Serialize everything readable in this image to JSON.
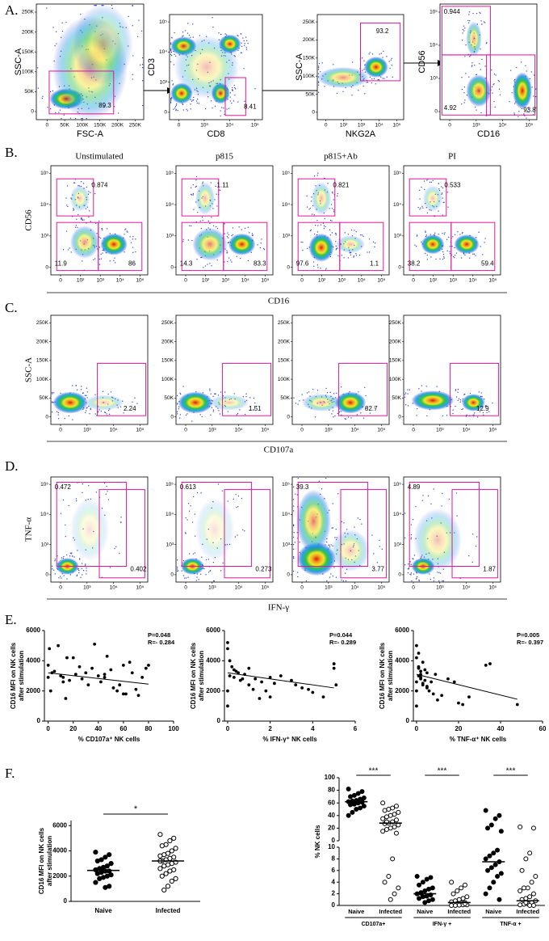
{
  "figure": {
    "panel_a": {
      "label": "A.",
      "plots": [
        {
          "y_label": "SSC-A",
          "x_label": "FSC-A",
          "yticks": [
            "0",
            "50K",
            "100K",
            "150K",
            "200K",
            "250K"
          ],
          "xticks": [
            "0",
            "50K",
            "100K",
            "150K",
            "200K",
            "250K"
          ],
          "gates": [
            "89.3"
          ]
        },
        {
          "y_label": "CD3",
          "x_label": "CD8",
          "yticks": [
            "0",
            "10³",
            "10⁴",
            "10⁵"
          ],
          "xticks": [
            "0",
            "10³",
            "10⁴",
            "10⁵"
          ],
          "gates": [
            "8.41"
          ]
        },
        {
          "y_label": "SSC-A",
          "x_label": "NKG2A",
          "yticks": [
            "0",
            "50K",
            "100K",
            "150K",
            "200K",
            "250K"
          ],
          "xticks": [
            "0",
            "10²",
            "10³",
            "10⁴",
            "10⁵"
          ],
          "gates": [
            "93.2"
          ]
        },
        {
          "y_label": "CD56",
          "x_label": "CD16",
          "yticks": [
            "0",
            "10³",
            "10⁴",
            "10⁵"
          ],
          "xticks": [
            "0",
            "10³",
            "10⁴",
            "10⁵"
          ],
          "gates": [
            "0.944",
            "4.92",
            "93.8"
          ]
        }
      ]
    },
    "panel_b": {
      "label": "B.",
      "column_titles": [
        "Unstimulated",
        "p815",
        "p815+Ab",
        "PI"
      ],
      "y_label": "CD56",
      "x_label": "CD16",
      "yticks": [
        "0",
        "10³",
        "10⁴",
        "10⁵"
      ],
      "xticks": [
        "0",
        "10²",
        "10³",
        "10⁴",
        "10⁵"
      ],
      "gates": [
        [
          "0.874",
          "11.9",
          "86"
        ],
        [
          "1.11",
          "14.3",
          "83.3"
        ],
        [
          "0.821",
          "97.6",
          "1.1"
        ],
        [
          "0.533",
          "38.2",
          "59.4"
        ]
      ]
    },
    "panel_c": {
      "label": "C.",
      "y_label": "SSC-A",
      "x_label": "CD107a",
      "yticks": [
        "0",
        "50K",
        "100K",
        "150K",
        "200K",
        "250K"
      ],
      "xticks": [
        "0",
        "10³",
        "10⁴",
        "10⁵"
      ],
      "gates": [
        [
          "2.24"
        ],
        [
          "1.51"
        ],
        [
          "82.7"
        ],
        [
          "12.9"
        ]
      ]
    },
    "panel_d": {
      "label": "D.",
      "y_label": "TNF-α",
      "x_label": "IFN-γ",
      "yticks": [
        "0",
        "10³",
        "10⁴",
        "10⁵"
      ],
      "xticks": [
        "0",
        "10³",
        "10⁴",
        "10⁵"
      ],
      "gates": [
        [
          "0.472",
          "0.402"
        ],
        [
          "0.613",
          "0.273"
        ],
        [
          "39.3",
          "3.77"
        ],
        [
          "4.89",
          "1.87"
        ]
      ]
    },
    "panel_e_label": "E.",
    "panel_f_label": "F."
  },
  "chart_data": [
    {
      "type": "scatter",
      "x_label": "% CD107a⁺ NK cells",
      "y_label": [
        "CD16 MFI on NK cells",
        "after stimulation"
      ],
      "annotations": [
        "P=0.048",
        "R=- 0.284"
      ],
      "x": [
        0,
        0,
        1,
        2,
        3,
        5,
        8,
        10,
        12,
        14,
        15,
        17,
        20,
        22,
        25,
        27,
        30,
        32,
        35,
        37,
        40,
        42,
        45,
        47,
        50,
        52,
        55,
        57,
        60,
        62,
        65,
        67,
        70,
        72,
        75,
        78,
        80,
        12,
        45,
        60
      ],
      "y": [
        2900,
        3700,
        4800,
        2000,
        3200,
        3300,
        5000,
        3000,
        2900,
        1500,
        4200,
        2700,
        4200,
        3100,
        3600,
        2800,
        3200,
        2400,
        3500,
        5100,
        3000,
        2600,
        3100,
        4300,
        3400,
        2200,
        2000,
        2400,
        3700,
        1800,
        3900,
        3200,
        2100,
        1700,
        2900,
        3500,
        3700,
        2600,
        2900,
        1800
      ],
      "trendline": {
        "x": [
          0,
          80
        ],
        "y": [
          3200,
          2450
        ]
      },
      "xlim": [
        -3,
        100
      ],
      "ylim": [
        0,
        6000
      ],
      "xticks": [
        0,
        20,
        40,
        60,
        80,
        100
      ],
      "yticks": [
        0,
        2000,
        4000,
        6000
      ],
      "color": "#000000"
    },
    {
      "type": "scatter",
      "x_label": "% IFN-γ⁺ NK cells",
      "y_label": [
        "CD16 MFI on NK cells",
        "after stimulation"
      ],
      "annotations": [
        "P=0.044",
        "R=- 0.289"
      ],
      "x": [
        0,
        0,
        0,
        0,
        0.1,
        0.1,
        0.2,
        0.3,
        0.3,
        0.5,
        0.6,
        0.8,
        1,
        1,
        1.2,
        1.3,
        1.5,
        1.6,
        1.8,
        2,
        2,
        2.2,
        2.5,
        3,
        3.2,
        3.5,
        3.8,
        4,
        4.5,
        5,
        5,
        5.1,
        0.4,
        0.7
      ],
      "y": [
        5200,
        4800,
        1000,
        2000,
        3000,
        4000,
        3600,
        3400,
        2900,
        3200,
        2700,
        3100,
        2400,
        3500,
        2100,
        2800,
        1500,
        2600,
        2000,
        1600,
        2900,
        2500,
        3000,
        2700,
        2400,
        2200,
        2100,
        1900,
        1600,
        3800,
        3500,
        2400,
        3300,
        2800
      ],
      "trendline": {
        "x": [
          0,
          5
        ],
        "y": [
          3200,
          2200
        ]
      },
      "xlim": [
        -0.15,
        6
      ],
      "ylim": [
        0,
        6000
      ],
      "xticks": [
        0,
        2,
        4,
        6
      ],
      "yticks": [
        0,
        2000,
        4000,
        6000
      ],
      "color": "#000000"
    },
    {
      "type": "scatter",
      "x_label": "% TNF-α⁺ NK cells",
      "y_label": [
        "CD16 MFI on NK cells",
        "after stimulation"
      ],
      "annotations": [
        "P=0.005",
        "R=- 0.397"
      ],
      "x": [
        0,
        0,
        0,
        0,
        1,
        1,
        1,
        2,
        2,
        2,
        3,
        3,
        4,
        4,
        5,
        5,
        6,
        7,
        8,
        9,
        10,
        12,
        15,
        18,
        20,
        22,
        25,
        33,
        35,
        48,
        1,
        2,
        3,
        0,
        5
      ],
      "y": [
        5000,
        4200,
        1000,
        2000,
        4500,
        3500,
        3000,
        3300,
        2800,
        3100,
        3900,
        2500,
        3400,
        2700,
        3200,
        2300,
        2000,
        2600,
        1800,
        3100,
        1400,
        1700,
        2800,
        2600,
        1200,
        1100,
        1600,
        3700,
        3800,
        1100,
        3600,
        2900,
        2400,
        2600,
        2200
      ],
      "trendline": {
        "x": [
          0,
          48
        ],
        "y": [
          3100,
          1450
        ]
      },
      "xlim": [
        -1.5,
        60
      ],
      "ylim": [
        0,
        6000
      ],
      "xticks": [
        0,
        20,
        40,
        60
      ],
      "yticks": [
        0,
        2000,
        4000,
        6000
      ],
      "color": "#000000"
    },
    {
      "type": "strip",
      "y_label": [
        "CD16 MFI on NK cells",
        "after stimulation"
      ],
      "categories": [
        "Naive",
        "Infected"
      ],
      "significance": "*",
      "groups": [
        {
          "values": [
            3900,
            3700,
            3500,
            3300,
            3200,
            3000,
            2800,
            2700,
            2600,
            2500,
            2400,
            2400,
            2300,
            2200,
            2100,
            2000,
            1900,
            1800,
            1500,
            1200,
            1100,
            2450
          ],
          "median": 2450,
          "marker": "filled"
        },
        {
          "values": [
            5300,
            5000,
            4800,
            4500,
            4400,
            4200,
            4000,
            3800,
            3700,
            3600,
            3500,
            3400,
            3300,
            3200,
            3100,
            3000,
            2900,
            2800,
            2600,
            2500,
            2400,
            2200,
            2000,
            1800,
            1600,
            1200,
            900,
            3200
          ],
          "median": 3200,
          "marker": "open"
        }
      ],
      "ylim": [
        0,
        6400
      ],
      "yticks": [
        0,
        2000,
        4000,
        6000
      ],
      "color": "#000000"
    },
    {
      "type": "strip-broken",
      "y_label": "% NK cells",
      "categories": [
        "Naive",
        "Infected",
        "Naive",
        "Infected",
        "Naive",
        "Infected"
      ],
      "group_labels": [
        "CD107a+",
        "IFN-γ +",
        "TNF-α +"
      ],
      "significance": [
        "***",
        "***",
        "***"
      ],
      "groups": [
        {
          "values": [
            82,
            78,
            75,
            72,
            70,
            68,
            66,
            64,
            63,
            62,
            61,
            60,
            58,
            57,
            55,
            52,
            50,
            45,
            40,
            65
          ],
          "median": 62,
          "marker": "filled"
        },
        {
          "values": [
            60,
            55,
            52,
            50,
            48,
            45,
            42,
            40,
            38,
            35,
            33,
            30,
            28,
            27,
            25,
            22,
            20,
            18,
            15,
            12,
            8,
            5,
            4,
            3,
            2,
            1,
            30
          ],
          "median": 28,
          "marker": "open"
        },
        {
          "values": [
            5,
            4.8,
            4.5,
            4,
            3.5,
            3,
            2.8,
            2.5,
            2.2,
            2,
            1.8,
            1.6,
            1.5,
            1.2,
            1,
            0.8,
            0.5,
            2.1
          ],
          "median": 2,
          "marker": "filled"
        },
        {
          "values": [
            4,
            3.5,
            3,
            2.5,
            2,
            1.5,
            1.2,
            1,
            0.8,
            0.6,
            0.5,
            0.4,
            0.3,
            0.2,
            0.1,
            0.1,
            0.05,
            0,
            0,
            0.3
          ],
          "median": 0.5,
          "marker": "open"
        },
        {
          "values": [
            48,
            40,
            35,
            25,
            20,
            15,
            9.5,
            9,
            8.5,
            8,
            7.5,
            7,
            6.5,
            6,
            5.5,
            5,
            4,
            3,
            2,
            1
          ],
          "median": 7.5,
          "marker": "filled"
        },
        {
          "values": [
            22,
            20,
            9,
            8,
            6,
            5,
            4,
            3,
            3,
            2.5,
            2,
            1.5,
            1.2,
            1,
            0.8,
            0.5,
            0.3,
            0.2,
            0.1,
            0,
            0,
            0.5
          ],
          "median": 0.8,
          "marker": "open"
        }
      ],
      "ylim_upper": [
        0,
        100
      ],
      "yticks_upper": [
        0,
        20,
        40,
        60,
        80,
        100
      ],
      "ylim_lower": [
        0,
        10
      ],
      "yticks_lower": [
        0,
        2,
        4,
        6,
        8,
        10
      ],
      "color": "#000000"
    }
  ]
}
